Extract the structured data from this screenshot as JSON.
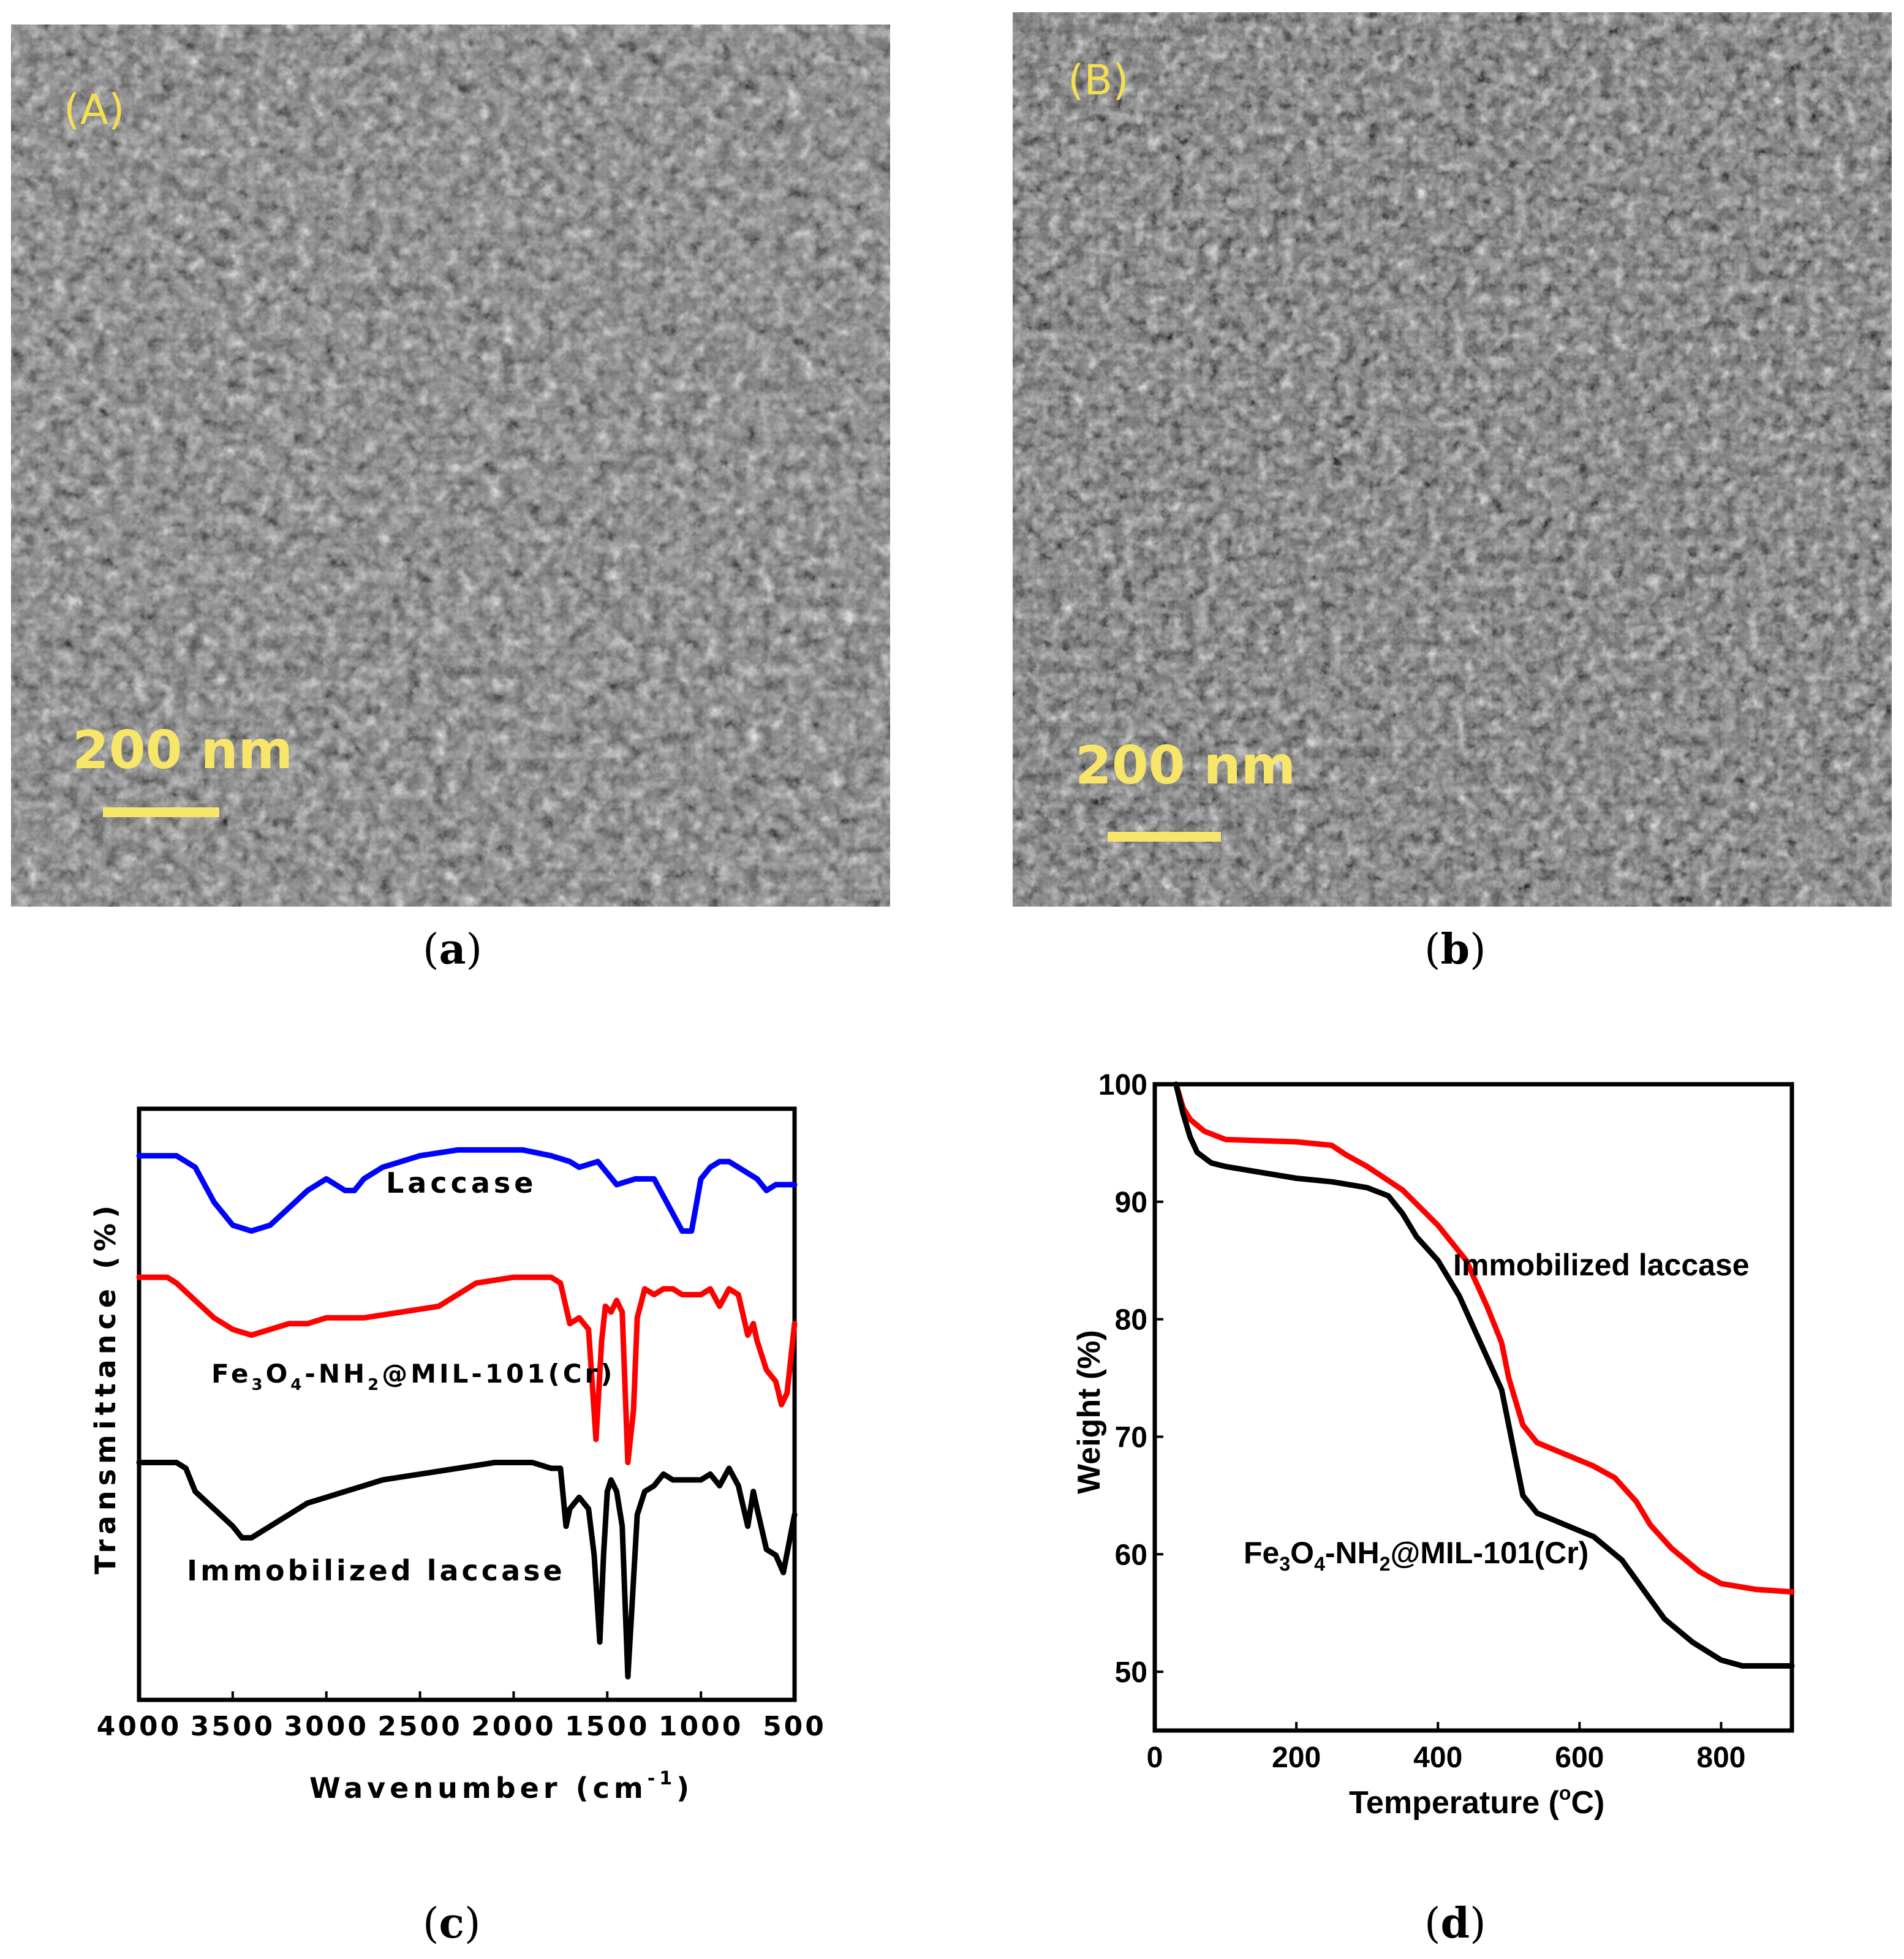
{
  "panel_a": {
    "tag": "(A)",
    "scale_label": "200 nm",
    "caption": "(a)",
    "caption_letter": "a"
  },
  "panel_b": {
    "tag": "(B)",
    "scale_label": "200 nm",
    "caption": "(b)",
    "caption_letter": "b"
  },
  "panel_c_caption_letter": "c",
  "panel_d_caption_letter": "d",
  "chart_data": [
    {
      "panel": "c",
      "type": "line",
      "xlabel_main": "Wavenumber (cm",
      "xlabel_sup": "-1",
      "xlabel_close": ")",
      "ylabel": "Transmittance (%)",
      "xlim": [
        4000,
        500
      ],
      "x_reversed": true,
      "x_ticks": [
        "4000",
        "3500",
        "3000",
        "2500",
        "2000",
        "1500",
        "1000",
        "500"
      ],
      "y_ticks_shown": false,
      "offset_traces": true,
      "series": [
        {
          "name": "Laccase",
          "color": "#0000ff",
          "points": [
            [
              4000,
              94
            ],
            [
              3800,
              94
            ],
            [
              3700,
              92
            ],
            [
              3600,
              86
            ],
            [
              3500,
              82
            ],
            [
              3400,
              81
            ],
            [
              3300,
              82
            ],
            [
              3200,
              85
            ],
            [
              3100,
              88
            ],
            [
              3000,
              90
            ],
            [
              2950,
              89
            ],
            [
              2900,
              88
            ],
            [
              2850,
              88
            ],
            [
              2800,
              90
            ],
            [
              2700,
              92
            ],
            [
              2500,
              94
            ],
            [
              2300,
              95
            ],
            [
              2100,
              95
            ],
            [
              1950,
              95
            ],
            [
              1800,
              94
            ],
            [
              1700,
              93
            ],
            [
              1650,
              92
            ],
            [
              1550,
              93
            ],
            [
              1500,
              91
            ],
            [
              1450,
              89
            ],
            [
              1350,
              90
            ],
            [
              1300,
              90
            ],
            [
              1250,
              90
            ],
            [
              1200,
              87
            ],
            [
              1150,
              84
            ],
            [
              1100,
              81
            ],
            [
              1050,
              81
            ],
            [
              1000,
              90
            ],
            [
              950,
              92
            ],
            [
              900,
              93
            ],
            [
              850,
              93
            ],
            [
              800,
              92
            ],
            [
              700,
              90
            ],
            [
              650,
              88
            ],
            [
              600,
              89
            ],
            [
              550,
              89
            ],
            [
              500,
              89
            ]
          ]
        },
        {
          "name": "Fe3O4-NH2@MIL-101(Cr)",
          "color": "#ff0000",
          "points": [
            [
              4000,
              73
            ],
            [
              3850,
              73
            ],
            [
              3800,
              72
            ],
            [
              3700,
              69
            ],
            [
              3600,
              66
            ],
            [
              3500,
              64
            ],
            [
              3400,
              63
            ],
            [
              3300,
              64
            ],
            [
              3200,
              65
            ],
            [
              3100,
              65
            ],
            [
              3000,
              66
            ],
            [
              2800,
              66
            ],
            [
              2600,
              67
            ],
            [
              2400,
              68
            ],
            [
              2200,
              72
            ],
            [
              2000,
              73
            ],
            [
              1800,
              73
            ],
            [
              1750,
              72
            ],
            [
              1700,
              65
            ],
            [
              1650,
              66
            ],
            [
              1600,
              64
            ],
            [
              1560,
              45
            ],
            [
              1530,
              62
            ],
            [
              1510,
              68
            ],
            [
              1480,
              67
            ],
            [
              1450,
              69
            ],
            [
              1420,
              67
            ],
            [
              1390,
              41
            ],
            [
              1360,
              50
            ],
            [
              1340,
              66
            ],
            [
              1300,
              71
            ],
            [
              1250,
              70
            ],
            [
              1200,
              71
            ],
            [
              1150,
              71
            ],
            [
              1100,
              70
            ],
            [
              1000,
              70
            ],
            [
              950,
              71
            ],
            [
              900,
              68
            ],
            [
              850,
              71
            ],
            [
              800,
              70
            ],
            [
              750,
              63
            ],
            [
              720,
              65
            ],
            [
              700,
              62
            ],
            [
              650,
              57
            ],
            [
              600,
              55
            ],
            [
              570,
              51
            ],
            [
              540,
              53
            ],
            [
              520,
              59
            ],
            [
              500,
              65
            ]
          ]
        },
        {
          "name": "Immobilized laccase",
          "color": "#000000",
          "points": [
            [
              4000,
              41
            ],
            [
              3800,
              41
            ],
            [
              3750,
              40
            ],
            [
              3700,
              36
            ],
            [
              3600,
              33
            ],
            [
              3500,
              30
            ],
            [
              3450,
              28
            ],
            [
              3400,
              28
            ],
            [
              3300,
              30
            ],
            [
              3200,
              32
            ],
            [
              3100,
              34
            ],
            [
              3000,
              35
            ],
            [
              2900,
              36
            ],
            [
              2800,
              37
            ],
            [
              2700,
              38
            ],
            [
              2500,
              39
            ],
            [
              2300,
              40
            ],
            [
              2100,
              41
            ],
            [
              1900,
              41
            ],
            [
              1800,
              40
            ],
            [
              1750,
              40
            ],
            [
              1720,
              30
            ],
            [
              1700,
              33
            ],
            [
              1650,
              35
            ],
            [
              1600,
              33
            ],
            [
              1570,
              25
            ],
            [
              1540,
              10
            ],
            [
              1520,
              25
            ],
            [
              1500,
              36
            ],
            [
              1480,
              38
            ],
            [
              1450,
              36
            ],
            [
              1420,
              30
            ],
            [
              1390,
              4
            ],
            [
              1370,
              15
            ],
            [
              1340,
              32
            ],
            [
              1300,
              36
            ],
            [
              1250,
              37
            ],
            [
              1200,
              39
            ],
            [
              1150,
              38
            ],
            [
              1100,
              38
            ],
            [
              1000,
              38
            ],
            [
              950,
              39
            ],
            [
              900,
              37
            ],
            [
              850,
              40
            ],
            [
              800,
              37
            ],
            [
              750,
              30
            ],
            [
              720,
              36
            ],
            [
              700,
              33
            ],
            [
              650,
              26
            ],
            [
              600,
              25
            ],
            [
              560,
              22
            ],
            [
              530,
              27
            ],
            [
              500,
              32
            ]
          ]
        }
      ],
      "annotations": [
        {
          "text": "Laccase"
        },
        {
          "parts": [
            "Fe",
            "3",
            "O",
            "4",
            "-NH",
            "2",
            "@MIL-101(Cr)"
          ]
        },
        {
          "text": "Immobilized laccase"
        }
      ]
    },
    {
      "panel": "d",
      "type": "line",
      "xlabel_main": "Temperature (",
      "xlabel_sup": "o",
      "xlabel_close": "C)",
      "ylabel": "Weight (%)",
      "xlim": [
        0,
        900
      ],
      "ylim": [
        45,
        100
      ],
      "x_ticks": [
        "0",
        "200",
        "400",
        "600",
        "800"
      ],
      "y_ticks": [
        "50",
        "60",
        "70",
        "80",
        "90",
        "100"
      ],
      "series": [
        {
          "name": "Immobilized laccase",
          "color": "#ff0000",
          "points": [
            [
              30,
              100
            ],
            [
              40,
              98
            ],
            [
              50,
              97
            ],
            [
              70,
              96
            ],
            [
              100,
              95.3
            ],
            [
              150,
              95.2
            ],
            [
              200,
              95.1
            ],
            [
              250,
              94.8
            ],
            [
              270,
              94
            ],
            [
              300,
              93
            ],
            [
              350,
              91
            ],
            [
              400,
              88
            ],
            [
              440,
              85
            ],
            [
              470,
              81
            ],
            [
              490,
              78
            ],
            [
              500,
              75
            ],
            [
              510,
              73
            ],
            [
              520,
              71
            ],
            [
              540,
              69.5
            ],
            [
              580,
              68.5
            ],
            [
              620,
              67.5
            ],
            [
              650,
              66.5
            ],
            [
              680,
              64.5
            ],
            [
              700,
              62.5
            ],
            [
              730,
              60.5
            ],
            [
              770,
              58.5
            ],
            [
              800,
              57.5
            ],
            [
              850,
              57
            ],
            [
              900,
              56.8
            ]
          ]
        },
        {
          "name": "Fe3O4-NH2@MIL-101(Cr)",
          "color": "#000000",
          "points": [
            [
              30,
              100
            ],
            [
              40,
              97.5
            ],
            [
              50,
              95.5
            ],
            [
              60,
              94.2
            ],
            [
              80,
              93.3
            ],
            [
              100,
              93
            ],
            [
              150,
              92.5
            ],
            [
              200,
              92
            ],
            [
              250,
              91.7
            ],
            [
              300,
              91.2
            ],
            [
              330,
              90.5
            ],
            [
              350,
              89
            ],
            [
              370,
              87
            ],
            [
              400,
              85
            ],
            [
              430,
              82
            ],
            [
              460,
              78
            ],
            [
              490,
              74
            ],
            [
              500,
              71
            ],
            [
              510,
              68
            ],
            [
              520,
              65
            ],
            [
              540,
              63.5
            ],
            [
              580,
              62.5
            ],
            [
              620,
              61.5
            ],
            [
              660,
              59.5
            ],
            [
              690,
              57
            ],
            [
              720,
              54.5
            ],
            [
              760,
              52.5
            ],
            [
              800,
              51
            ],
            [
              830,
              50.5
            ],
            [
              900,
              50.5
            ]
          ]
        }
      ],
      "annotations": [
        {
          "text": "Immobilized laccase"
        },
        {
          "parts": [
            "Fe",
            "3",
            "O",
            "4",
            "-NH",
            "2",
            "@MIL-101(Cr)"
          ]
        }
      ]
    }
  ]
}
